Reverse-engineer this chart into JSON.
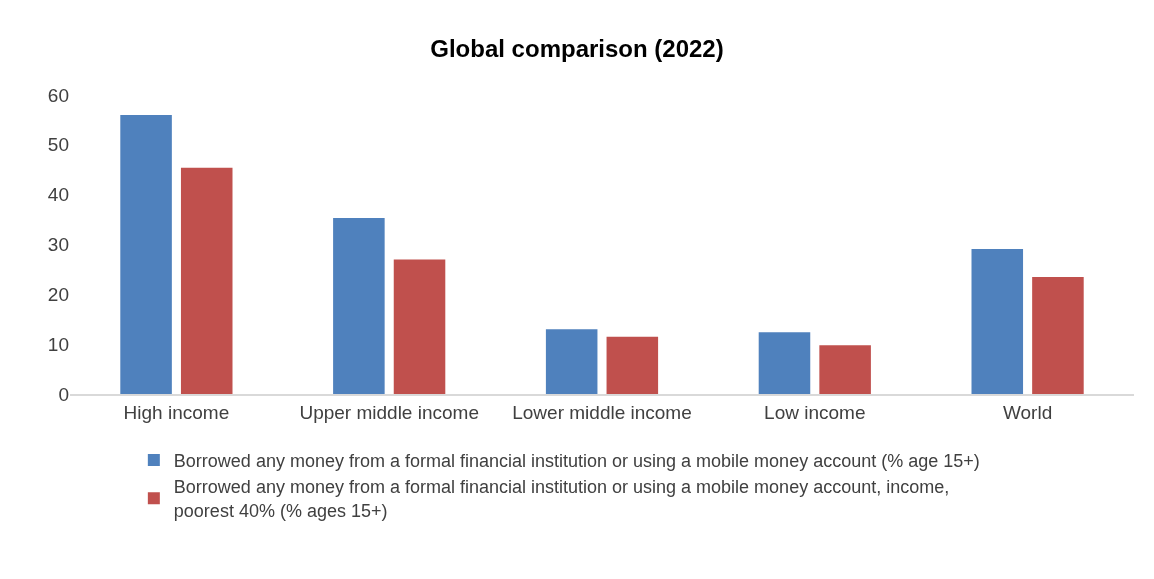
{
  "chart_data": {
    "type": "bar",
    "title": "Global comparison (2022)",
    "categories": [
      "High income",
      "Upper middle income",
      "Lower middle income",
      "Low income",
      "World"
    ],
    "series": [
      {
        "name": "Borrowed any money from a formal financial institution or using a mobile money account (% age 15+)",
        "color": "#4f81bd",
        "values": [
          56.0,
          35.3,
          13.0,
          12.4,
          29.1
        ]
      },
      {
        "name": "Borrowed any money from a formal financial institution or using a mobile money account, income, poorest 40% (% ages 15+)",
        "color": "#c0504d",
        "values": [
          45.4,
          27.0,
          11.5,
          9.8,
          23.5
        ]
      }
    ],
    "ylim": [
      0,
      60
    ],
    "yticks": [
      0,
      10,
      20,
      30,
      40,
      50,
      60
    ],
    "grid": false,
    "legend": "bottom"
  }
}
